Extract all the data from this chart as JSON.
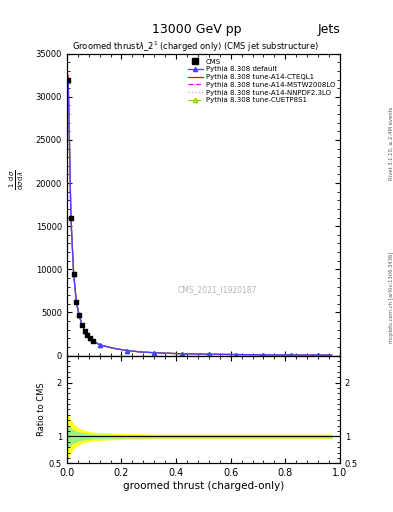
{
  "title_top": "13000 GeV pp",
  "title_right": "Jets",
  "plot_title": "Groomed thrustλ_2¹  (charged only) (CMS jet substructure)",
  "xlabel": "groomed thrust (charged-only)",
  "ylabel_ratio": "Ratio to CMS",
  "watermark": "CMS_2021_I1920187",
  "right_label": "mcplots.cern.ch [arXiv:1306.3436]",
  "right_label2": "Rivet 3.1.10, ≥ 2.4M events",
  "xlim": [
    0,
    1
  ],
  "ylim_main": [
    0,
    35000
  ],
  "ylim_ratio": [
    0.5,
    2.5
  ],
  "yticks_main": [
    0,
    5000,
    10000,
    15000,
    20000,
    25000,
    30000,
    35000
  ],
  "ytick_labels_main": [
    "0",
    "5000",
    "10000",
    "15000",
    "20000",
    "25000",
    "30000",
    "35000"
  ],
  "yticks_ratio": [
    0.5,
    1.0,
    2.0
  ],
  "ytick_labels_ratio": [
    "0.5",
    "1",
    "2"
  ],
  "x_data": [
    0.005,
    0.015,
    0.025,
    0.035,
    0.045,
    0.055,
    0.065,
    0.075,
    0.085,
    0.095,
    0.12,
    0.17,
    0.22,
    0.27,
    0.32,
    0.37,
    0.42,
    0.47,
    0.52,
    0.57,
    0.62,
    0.67,
    0.72,
    0.77,
    0.82,
    0.87,
    0.92,
    0.97
  ],
  "y_cms": [
    32000,
    16000,
    9500,
    6200,
    4700,
    3600,
    2900,
    2400,
    2000,
    1700,
    1250,
    850,
    580,
    420,
    330,
    265,
    210,
    180,
    155,
    135,
    120,
    105,
    93,
    83,
    72,
    63,
    57,
    52
  ],
  "y_default": [
    32000,
    16000,
    9500,
    6200,
    4700,
    3600,
    2900,
    2400,
    2000,
    1700,
    1250,
    850,
    580,
    420,
    330,
    265,
    210,
    180,
    155,
    135,
    120,
    105,
    93,
    83,
    72,
    63,
    57,
    52
  ],
  "y_cteql1": [
    32500,
    16200,
    9600,
    6250,
    4720,
    3620,
    2920,
    2420,
    2020,
    1720,
    1260,
    855,
    585,
    422,
    332,
    267,
    212,
    181,
    156,
    136,
    121,
    106,
    94,
    84,
    73,
    64,
    58,
    53
  ],
  "y_mstw": [
    31500,
    15800,
    9400,
    6150,
    4680,
    3580,
    2880,
    2380,
    1980,
    1680,
    1240,
    845,
    575,
    418,
    328,
    263,
    208,
    179,
    154,
    134,
    119,
    104,
    92,
    82,
    71,
    62,
    56,
    51
  ],
  "y_nnpdf": [
    32200,
    16100,
    9550,
    6220,
    4710,
    3610,
    2910,
    2410,
    2010,
    1710,
    1255,
    852,
    582,
    421,
    331,
    266,
    211,
    180,
    155,
    135,
    120,
    105,
    93,
    83,
    72,
    63,
    57,
    52
  ],
  "y_cuetp8s1": [
    31800,
    15900,
    9450,
    6180,
    4690,
    3590,
    2890,
    2390,
    1990,
    1690,
    1245,
    848,
    578,
    419,
    329,
    264,
    209,
    179,
    154,
    134,
    119,
    104,
    92,
    82,
    71,
    62,
    56,
    51
  ],
  "ratio_yellow_lo": [
    0.62,
    0.72,
    0.78,
    0.83,
    0.86,
    0.88,
    0.9,
    0.91,
    0.92,
    0.93,
    0.94,
    0.95,
    0.96,
    0.96,
    0.97,
    0.97,
    0.97,
    0.97,
    0.97,
    0.97,
    0.97,
    0.97,
    0.97,
    0.97,
    0.97,
    0.97,
    0.97,
    0.97
  ],
  "ratio_yellow_hi": [
    1.38,
    1.28,
    1.22,
    1.17,
    1.14,
    1.12,
    1.1,
    1.09,
    1.08,
    1.07,
    1.06,
    1.05,
    1.04,
    1.04,
    1.03,
    1.03,
    1.03,
    1.03,
    1.03,
    1.03,
    1.03,
    1.03,
    1.03,
    1.03,
    1.03,
    1.03,
    1.03,
    1.03
  ],
  "ratio_green_lo": [
    0.8,
    0.86,
    0.89,
    0.91,
    0.93,
    0.94,
    0.95,
    0.96,
    0.96,
    0.97,
    0.97,
    0.975,
    0.98,
    0.98,
    0.98,
    0.98,
    0.98,
    0.98,
    0.98,
    0.98,
    0.98,
    0.98,
    0.98,
    0.98,
    0.98,
    0.98,
    0.98,
    0.98
  ],
  "ratio_green_hi": [
    1.2,
    1.14,
    1.11,
    1.09,
    1.07,
    1.06,
    1.05,
    1.04,
    1.04,
    1.03,
    1.03,
    1.025,
    1.02,
    1.02,
    1.02,
    1.02,
    1.02,
    1.02,
    1.02,
    1.02,
    1.02,
    1.02,
    1.02,
    1.02,
    1.02,
    1.02,
    1.02,
    1.02
  ]
}
